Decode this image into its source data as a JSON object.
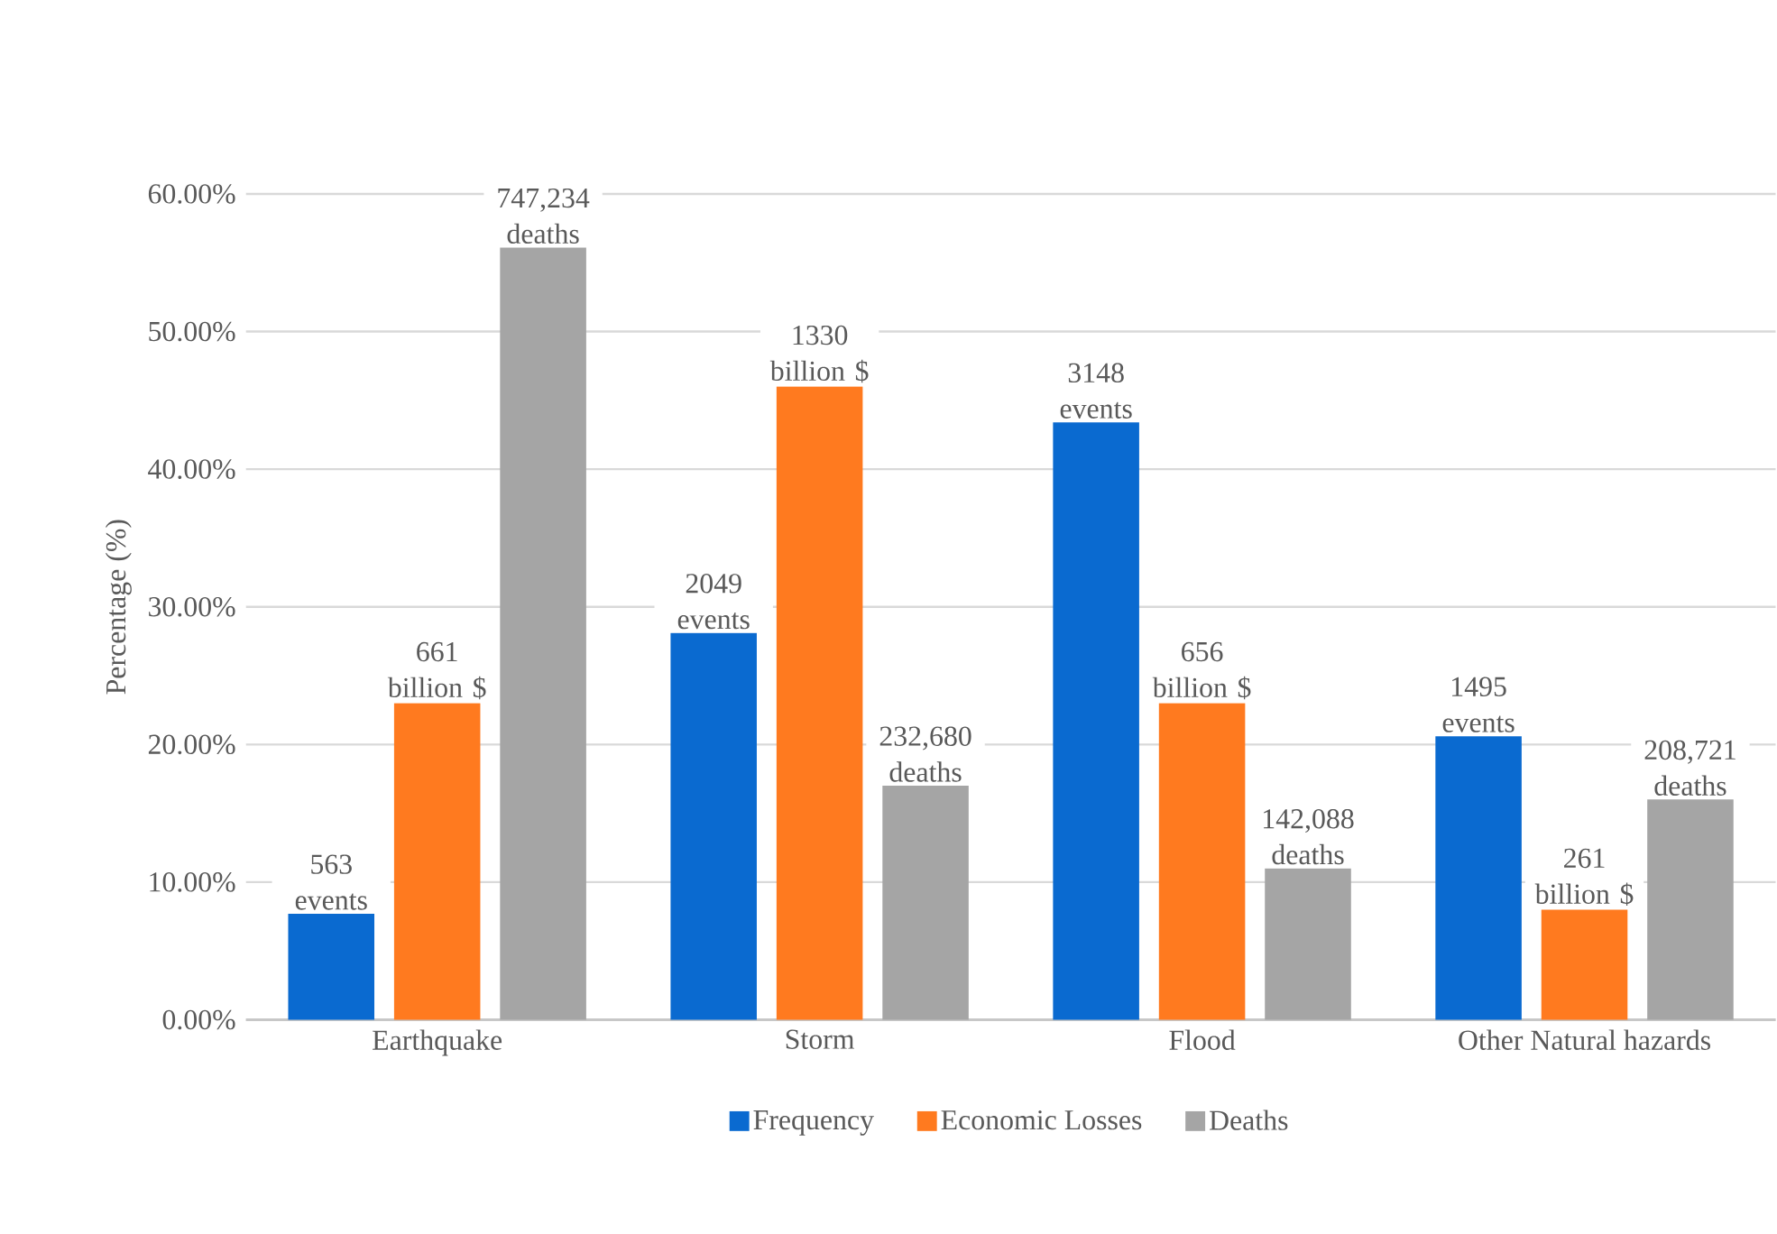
{
  "chart_data": {
    "type": "bar",
    "ylabel": "Percentage (%)",
    "categories": [
      "Earthquake",
      "Storm",
      "Flood",
      "Other Natural hazards"
    ],
    "series": [
      {
        "name": "Frequency",
        "color": "#0a6ad0",
        "values": [
          7.7,
          28.1,
          43.4,
          20.6
        ]
      },
      {
        "name": "Economic Losses",
        "color": "#ff7a1f",
        "values": [
          23.0,
          46.0,
          23.0,
          8.0
        ]
      },
      {
        "name": "Deaths",
        "color": "#a5a5a5",
        "values": [
          56.1,
          17.0,
          11.0,
          16.0
        ]
      }
    ],
    "annotations": [
      "563 events",
      "2049 events",
      "3148 events",
      "1495 events",
      "661 billion $",
      "1330 billion $",
      "656 billion $",
      "261 billion $",
      "747,234 deaths",
      "232,680 deaths",
      "142,088 deaths",
      "208,721 deaths"
    ],
    "ylim": [
      0,
      60
    ],
    "yticks": [
      {
        "value": 0,
        "label": "0.00%"
      },
      {
        "value": 10,
        "label": "10.00%"
      },
      {
        "value": 20,
        "label": "20.00%"
      },
      {
        "value": 30,
        "label": "30.00%"
      },
      {
        "value": 40,
        "label": "40.00%"
      },
      {
        "value": 50,
        "label": "50.00%"
      },
      {
        "value": 60,
        "label": "60.00%"
      }
    ],
    "grid": "y",
    "legend": "bottom"
  }
}
